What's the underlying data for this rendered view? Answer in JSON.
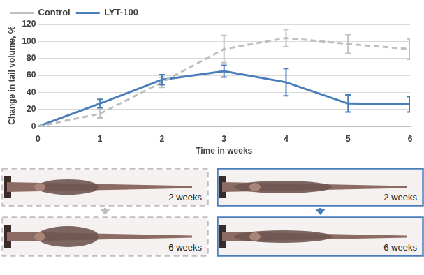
{
  "chart_data": {
    "type": "line",
    "x_label": "Time in weeks",
    "y_label": "Change in tail volume, %",
    "x": [
      0,
      1,
      2,
      3,
      4,
      5,
      6
    ],
    "xlim": [
      0,
      6
    ],
    "xticks": [
      0,
      1,
      2,
      3,
      4,
      5,
      6
    ],
    "ylim": [
      0,
      120
    ],
    "yticks": [
      0,
      20,
      40,
      60,
      80,
      100,
      120
    ],
    "grid": true,
    "legend": "top-left",
    "series": [
      {
        "name": "Control",
        "color": "#bfbfbf",
        "line_style": "dashed",
        "values": [
          0,
          15,
          52,
          91,
          104,
          97,
          91
        ],
        "errors": [
          0,
          5,
          6,
          16,
          10,
          11,
          12
        ]
      },
      {
        "name": "LYT-100",
        "color": "#4a7ebb",
        "line_style": "solid",
        "values": [
          0,
          27,
          55,
          65,
          52,
          27,
          26
        ],
        "errors": [
          0,
          5,
          6,
          7,
          16,
          10,
          9
        ]
      }
    ]
  },
  "panels": [
    {
      "series": "Control",
      "images": [
        "2 weeks",
        "6 weeks"
      ]
    },
    {
      "series": "LYT-100",
      "images": [
        "2 weeks",
        "6 weeks"
      ]
    }
  ]
}
